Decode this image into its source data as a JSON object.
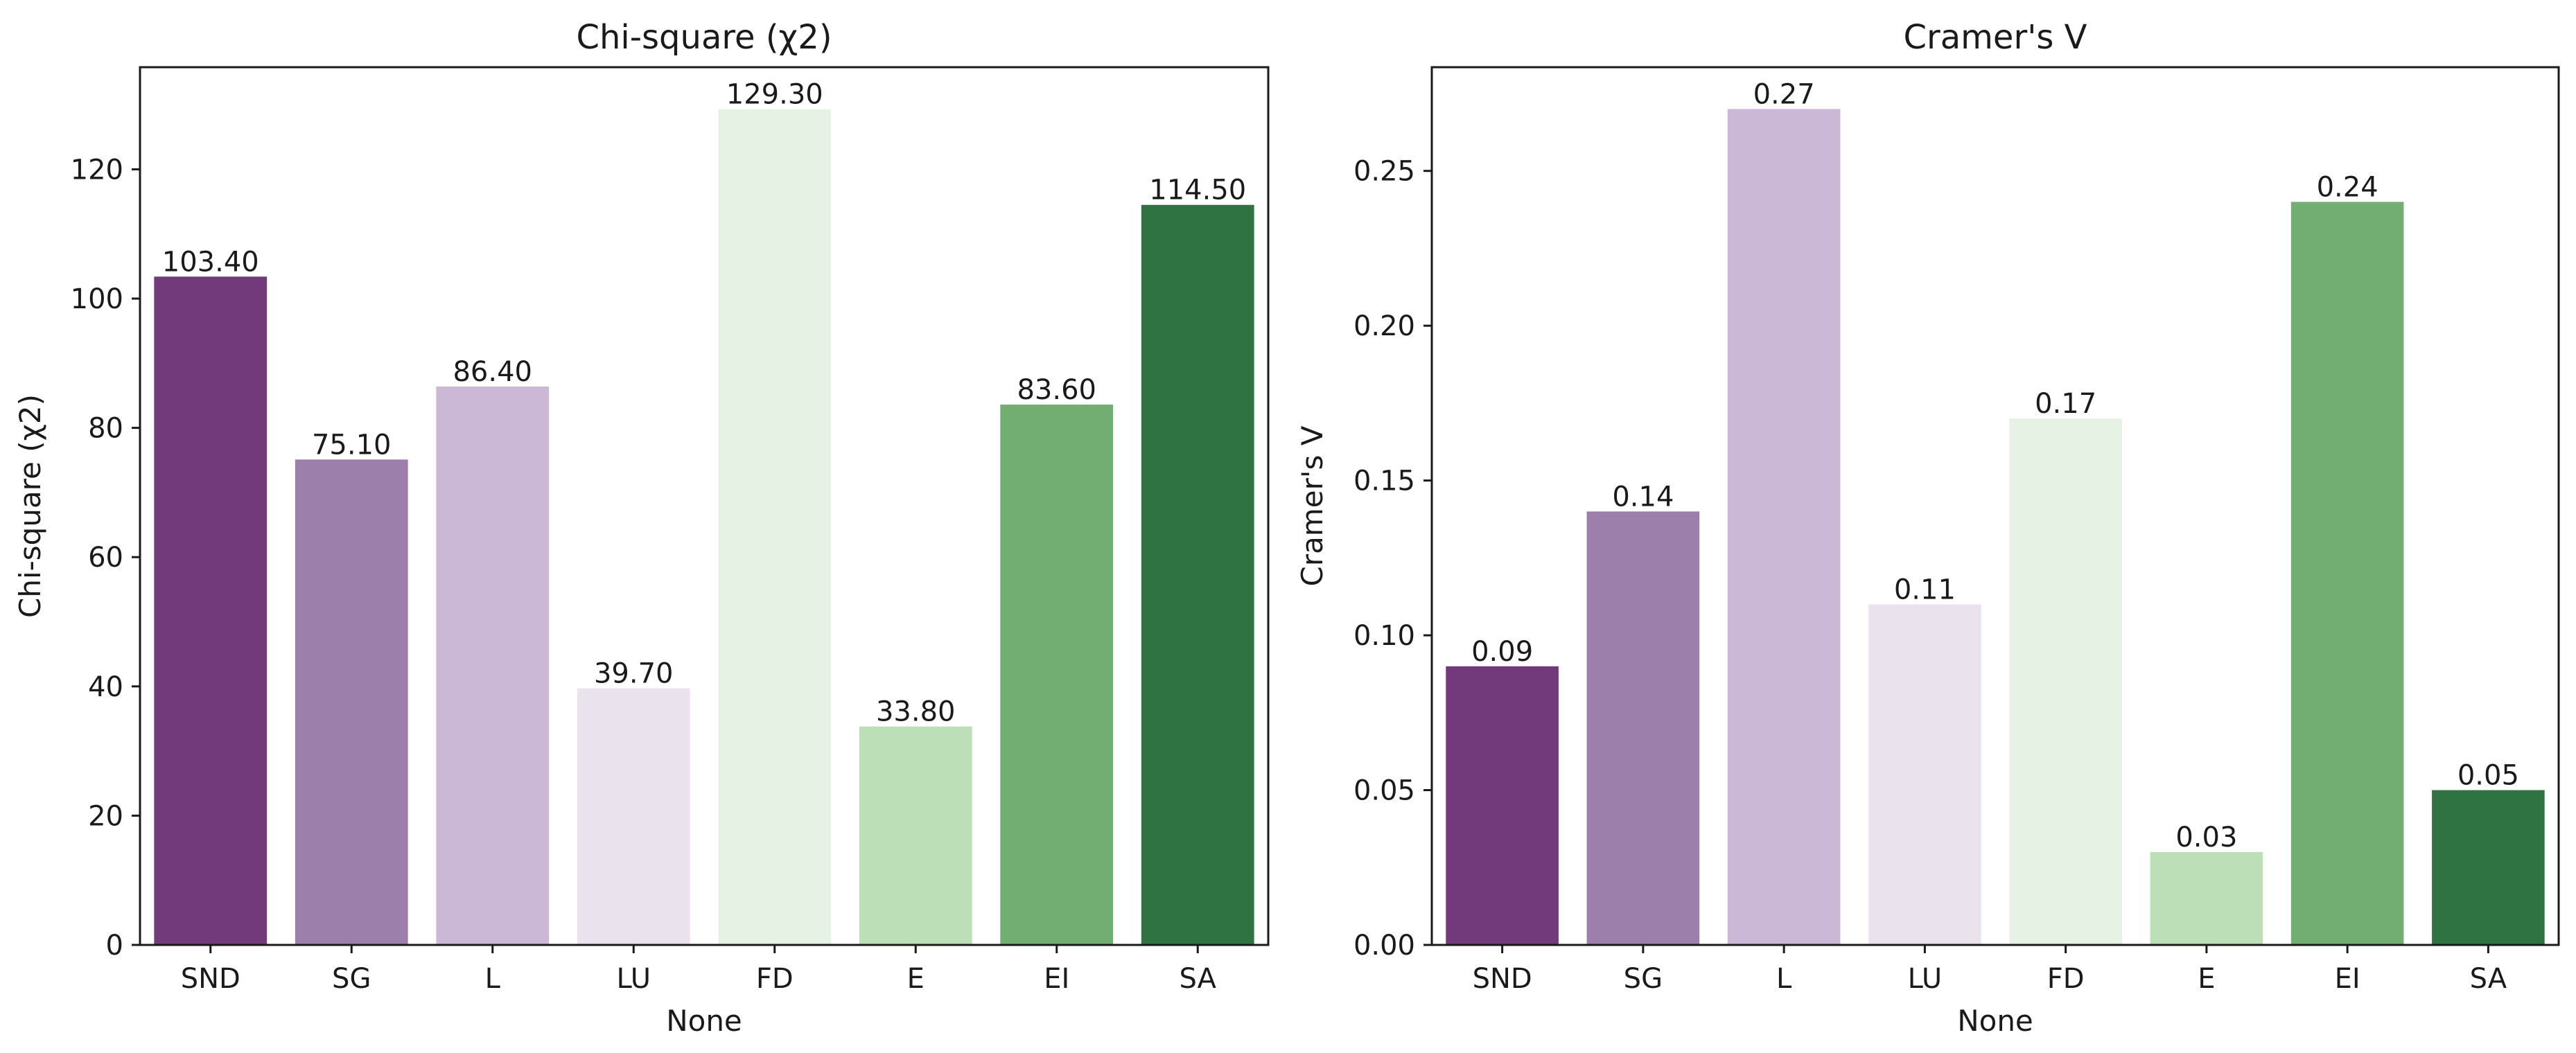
{
  "chart_data": [
    {
      "type": "bar",
      "title": "Chi-square (χ2)",
      "xlabel": "None",
      "ylabel": "Chi-square (χ2)",
      "categories": [
        "SND",
        "SG",
        "L",
        "LU",
        "FD",
        "E",
        "EI",
        "SA"
      ],
      "values": [
        103.4,
        75.1,
        86.4,
        39.7,
        129.3,
        33.8,
        83.6,
        114.5
      ],
      "value_labels": [
        "103.40",
        "75.10",
        "86.40",
        "39.70",
        "129.30",
        "33.80",
        "83.60",
        "114.50"
      ],
      "ylim": [
        0,
        135.8
      ],
      "yticks": [
        0,
        20,
        40,
        60,
        80,
        100,
        120
      ],
      "ytick_labels": [
        "0",
        "20",
        "40",
        "60",
        "80",
        "100",
        "120"
      ],
      "grid": false,
      "legend": "none",
      "colors": [
        "#733a7b",
        "#9c7fab",
        "#cbb8d6",
        "#eae3ed",
        "#e5f2e4",
        "#bddfb7",
        "#72ae72",
        "#2e7341"
      ]
    },
    {
      "type": "bar",
      "title": "Cramer's V",
      "xlabel": "None",
      "ylabel": "Cramer's V",
      "categories": [
        "SND",
        "SG",
        "L",
        "LU",
        "FD",
        "E",
        "EI",
        "SA"
      ],
      "values": [
        0.09,
        0.14,
        0.27,
        0.11,
        0.17,
        0.03,
        0.24,
        0.05
      ],
      "value_labels": [
        "0.09",
        "0.14",
        "0.27",
        "0.11",
        "0.17",
        "0.03",
        "0.24",
        "0.05"
      ],
      "ylim": [
        0,
        0.2835
      ],
      "yticks": [
        0,
        0.05,
        0.1,
        0.15,
        0.2,
        0.25
      ],
      "ytick_labels": [
        "0.00",
        "0.05",
        "0.10",
        "0.15",
        "0.20",
        "0.25"
      ],
      "grid": false,
      "legend": "none",
      "colors": [
        "#733a7b",
        "#9c7fab",
        "#cbb8d6",
        "#eae3ed",
        "#e5f2e4",
        "#bddfb7",
        "#72ae72",
        "#2e7341"
      ]
    }
  ]
}
